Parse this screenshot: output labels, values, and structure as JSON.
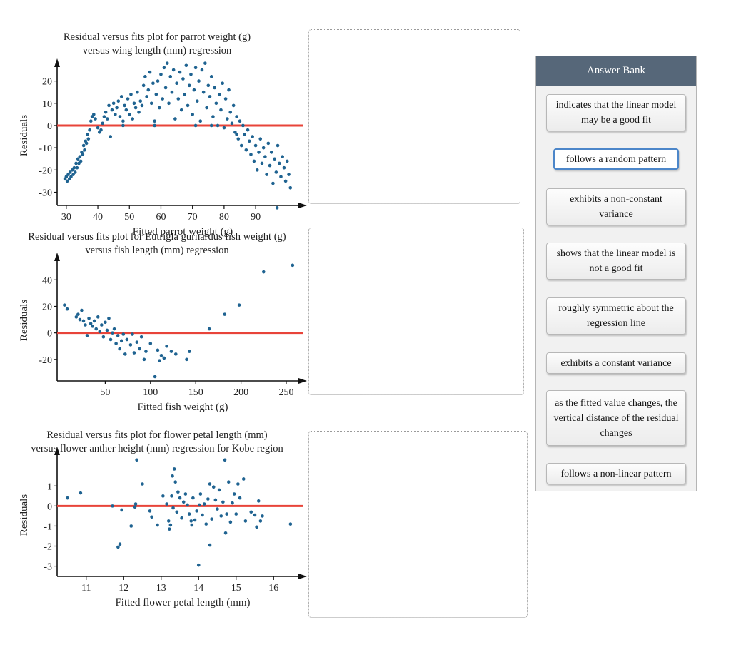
{
  "colors": {
    "point": "#1f6391",
    "regression_line": "#e8443a",
    "bank_header": "#566779"
  },
  "answer_bank": {
    "title": "Answer Bank",
    "chips": [
      "indicates that the linear model may be a good fit",
      "follows a random pattern",
      "exhibits a non-constant variance",
      "shows that the linear model is not a good fit",
      "roughly symmetric about the regression line",
      "exhibits a constant variance",
      "as the fitted value changes, the vertical distance of the residual changes",
      "follows a non-linear pattern"
    ]
  },
  "chart_data": [
    {
      "type": "scatter",
      "title_lines": [
        "Residual versus fits plot for parrot weight (g)",
        "versus wing length (mm) regression"
      ],
      "xlabel": "Fitted parrot weight (g)",
      "ylabel": "Residuals",
      "xlim": [
        28,
        104
      ],
      "ylim": [
        -34,
        25
      ],
      "xticks": [
        30,
        40,
        50,
        60,
        70,
        80,
        90
      ],
      "yticks": [
        20,
        10,
        0,
        -10,
        -20,
        -30
      ],
      "reference_line_y": 0,
      "points": [
        [
          29.6,
          -24
        ],
        [
          30.0,
          -23
        ],
        [
          30.3,
          -25
        ],
        [
          30.6,
          -22
        ],
        [
          31.0,
          -24
        ],
        [
          31.2,
          -21
        ],
        [
          31.5,
          -23
        ],
        [
          31.9,
          -20
        ],
        [
          32.2,
          -22
        ],
        [
          32.5,
          -19
        ],
        [
          32.8,
          -21
        ],
        [
          33.1,
          -17
        ],
        [
          33.4,
          -19
        ],
        [
          33.7,
          -15
        ],
        [
          34.0,
          -17
        ],
        [
          34.3,
          -14
        ],
        [
          34.6,
          -16
        ],
        [
          34.9,
          -12
        ],
        [
          35.2,
          -13
        ],
        [
          35.5,
          -9
        ],
        [
          35.8,
          -11
        ],
        [
          36.1,
          -7
        ],
        [
          36.4,
          -8
        ],
        [
          36.7,
          -4
        ],
        [
          37.0,
          -6
        ],
        [
          37.4,
          -2
        ],
        [
          37.8,
          2
        ],
        [
          38.2,
          4
        ],
        [
          38.7,
          5
        ],
        [
          39.2,
          3
        ],
        [
          40.0,
          -1
        ],
        [
          40.5,
          -3
        ],
        [
          41.0,
          -2
        ],
        [
          41.5,
          1
        ],
        [
          42.0,
          4
        ],
        [
          42.5,
          6
        ],
        [
          43.0,
          3
        ],
        [
          43.5,
          9
        ],
        [
          44.0,
          -5
        ],
        [
          44.5,
          7
        ],
        [
          45.0,
          10
        ],
        [
          45.5,
          5
        ],
        [
          46.0,
          8
        ],
        [
          46.5,
          11
        ],
        [
          47.0,
          4
        ],
        [
          47.5,
          13
        ],
        [
          48.0,
          2
        ],
        [
          48.5,
          9
        ],
        [
          49.0,
          7
        ],
        [
          49.5,
          12
        ],
        [
          50.0,
          5
        ],
        [
          50.5,
          14
        ],
        [
          51.0,
          3
        ],
        [
          51.5,
          10
        ],
        [
          52.0,
          8
        ],
        [
          52.5,
          15
        ],
        [
          53.0,
          6
        ],
        [
          53.5,
          11
        ],
        [
          54.0,
          9
        ],
        [
          54.5,
          18
        ],
        [
          55.0,
          22
        ],
        [
          55.5,
          13
        ],
        [
          56.0,
          16
        ],
        [
          56.5,
          24
        ],
        [
          57.0,
          10
        ],
        [
          57.5,
          19
        ],
        [
          58.0,
          2
        ],
        [
          58.5,
          14
        ],
        [
          59.0,
          20
        ],
        [
          59.5,
          8
        ],
        [
          60.0,
          23
        ],
        [
          60.5,
          12
        ],
        [
          61.0,
          26
        ],
        [
          61.5,
          17
        ],
        [
          62.0,
          28
        ],
        [
          62.5,
          10
        ],
        [
          63.0,
          22
        ],
        [
          63.5,
          15
        ],
        [
          64.0,
          25
        ],
        [
          64.5,
          3
        ],
        [
          65.0,
          19
        ],
        [
          65.5,
          12
        ],
        [
          66.0,
          24
        ],
        [
          66.5,
          7
        ],
        [
          67.0,
          21
        ],
        [
          67.5,
          14
        ],
        [
          68.0,
          27
        ],
        [
          68.5,
          9
        ],
        [
          69.0,
          18
        ],
        [
          69.5,
          23
        ],
        [
          70.0,
          5
        ],
        [
          70.5,
          16
        ],
        [
          71.0,
          26
        ],
        [
          71.5,
          11
        ],
        [
          72.0,
          20
        ],
        [
          72.5,
          2
        ],
        [
          73.0,
          25
        ],
        [
          73.5,
          15
        ],
        [
          74.0,
          28
        ],
        [
          74.5,
          8
        ],
        [
          75.0,
          18
        ],
        [
          75.5,
          13
        ],
        [
          76.0,
          22
        ],
        [
          76.5,
          4
        ],
        [
          77.0,
          17
        ],
        [
          77.5,
          10
        ],
        [
          78.0,
          0
        ],
        [
          78.5,
          14
        ],
        [
          79.0,
          7
        ],
        [
          79.5,
          19
        ],
        [
          80.0,
          -1
        ],
        [
          80.5,
          12
        ],
        [
          81.0,
          3
        ],
        [
          81.5,
          16
        ],
        [
          82.0,
          6
        ],
        [
          82.5,
          1
        ],
        [
          83.0,
          9
        ],
        [
          83.5,
          -3
        ],
        [
          84.0,
          4
        ],
        [
          84.5,
          -6
        ],
        [
          85.0,
          2
        ],
        [
          85.5,
          -9
        ],
        [
          86.0,
          0
        ],
        [
          86.5,
          -4
        ],
        [
          87.0,
          -11
        ],
        [
          87.5,
          -2
        ],
        [
          88.0,
          -7
        ],
        [
          88.5,
          -13
        ],
        [
          89.0,
          -5
        ],
        [
          89.5,
          -16
        ],
        [
          90.0,
          -9
        ],
        [
          90.5,
          -20
        ],
        [
          91.0,
          -12
        ],
        [
          91.5,
          -6
        ],
        [
          92.0,
          -17
        ],
        [
          92.5,
          -10
        ],
        [
          93.0,
          -14
        ],
        [
          93.5,
          -22
        ],
        [
          94.0,
          -8
        ],
        [
          94.5,
          -18
        ],
        [
          95.0,
          -12
        ],
        [
          95.5,
          -26
        ],
        [
          96.0,
          -15
        ],
        [
          96.5,
          -21
        ],
        [
          97.0,
          -9
        ],
        [
          97.5,
          -17
        ],
        [
          98.0,
          -23
        ],
        [
          98.5,
          -14
        ],
        [
          99.0,
          -19
        ],
        [
          99.5,
          -25
        ],
        [
          100.0,
          -16
        ],
        [
          100.5,
          -22
        ],
        [
          101.0,
          -28
        ],
        [
          96.8,
          -37
        ],
        [
          84.0,
          -4
        ],
        [
          76.0,
          0
        ],
        [
          71.0,
          0
        ],
        [
          58.0,
          0
        ],
        [
          48.0,
          0
        ]
      ]
    },
    {
      "type": "scatter",
      "title_lines": [
        "Residual versus fits plot for Eutrigla gurnardus fish weight (g)",
        "versus fish length (mm) regression"
      ],
      "xlabel": "Fitted fish weight (g)",
      "ylabel": "Residuals",
      "xlim": [
        0,
        265
      ],
      "ylim": [
        -33,
        52
      ],
      "xticks": [
        50,
        100,
        150,
        200,
        250
      ],
      "yticks": [
        40,
        20,
        0,
        -20
      ],
      "reference_line_y": 0,
      "points": [
        [
          5,
          21
        ],
        [
          8,
          18
        ],
        [
          18,
          12
        ],
        [
          20,
          14
        ],
        [
          22,
          10
        ],
        [
          24,
          17
        ],
        [
          26,
          9
        ],
        [
          28,
          6
        ],
        [
          30,
          -2
        ],
        [
          32,
          11
        ],
        [
          34,
          7
        ],
        [
          36,
          5
        ],
        [
          38,
          9
        ],
        [
          40,
          3
        ],
        [
          42,
          12
        ],
        [
          44,
          1
        ],
        [
          46,
          6
        ],
        [
          48,
          -3
        ],
        [
          50,
          8
        ],
        [
          52,
          2
        ],
        [
          54,
          11
        ],
        [
          56,
          -5
        ],
        [
          58,
          0
        ],
        [
          60,
          3
        ],
        [
          62,
          -8
        ],
        [
          64,
          -2
        ],
        [
          66,
          -12
        ],
        [
          68,
          -6
        ],
        [
          70,
          -1
        ],
        [
          72,
          -16
        ],
        [
          74,
          -5
        ],
        [
          78,
          -9
        ],
        [
          80,
          -1
        ],
        [
          82,
          -15
        ],
        [
          85,
          -7
        ],
        [
          88,
          -12
        ],
        [
          90,
          -3
        ],
        [
          93,
          -20
        ],
        [
          95,
          -14
        ],
        [
          100,
          -8
        ],
        [
          105,
          -33
        ],
        [
          108,
          -13
        ],
        [
          110,
          -21
        ],
        [
          112,
          -17
        ],
        [
          115,
          -19
        ],
        [
          118,
          -10
        ],
        [
          123,
          -14
        ],
        [
          128,
          -16
        ],
        [
          140,
          -20
        ],
        [
          143,
          -14
        ],
        [
          165,
          3
        ],
        [
          182,
          14
        ],
        [
          198,
          21
        ],
        [
          225,
          46
        ],
        [
          257,
          51
        ]
      ]
    },
    {
      "type": "scatter",
      "title_lines": [
        "Residual versus fits plot for flower petal length (mm)",
        "versus flower anther height (mm) regression for Kobe region"
      ],
      "xlabel": "Fitted flower petal length (mm)",
      "ylabel": "Residuals",
      "xlim": [
        10.3,
        16.7
      ],
      "ylim": [
        -3.3,
        2.4
      ],
      "xticks": [
        11,
        12,
        13,
        14,
        15,
        16
      ],
      "yticks": [
        1,
        0,
        -1,
        -2,
        -3
      ],
      "reference_line_y": 0,
      "points": [
        [
          10.5,
          0.4
        ],
        [
          10.85,
          0.65
        ],
        [
          11.7,
          0.0
        ],
        [
          11.85,
          -2.05
        ],
        [
          11.9,
          -1.9
        ],
        [
          11.95,
          -0.2
        ],
        [
          12.2,
          -1.0
        ],
        [
          12.3,
          -0.05
        ],
        [
          12.32,
          0.1
        ],
        [
          12.35,
          2.3
        ],
        [
          12.5,
          1.1
        ],
        [
          12.7,
          -0.25
        ],
        [
          12.75,
          -0.55
        ],
        [
          12.9,
          -0.95
        ],
        [
          13.05,
          0.5
        ],
        [
          13.15,
          0.1
        ],
        [
          13.2,
          -0.75
        ],
        [
          13.22,
          -1.15
        ],
        [
          13.25,
          -0.95
        ],
        [
          13.28,
          0.5
        ],
        [
          13.3,
          1.5
        ],
        [
          13.32,
          -0.1
        ],
        [
          13.35,
          1.85
        ],
        [
          13.38,
          1.2
        ],
        [
          13.42,
          -0.3
        ],
        [
          13.45,
          0.7
        ],
        [
          13.5,
          0.4
        ],
        [
          13.55,
          -0.6
        ],
        [
          13.6,
          0.2
        ],
        [
          13.65,
          0.6
        ],
        [
          13.7,
          0.05
        ],
        [
          13.75,
          -0.4
        ],
        [
          13.8,
          -0.75
        ],
        [
          13.82,
          -0.95
        ],
        [
          13.85,
          0.4
        ],
        [
          13.9,
          -0.7
        ],
        [
          13.95,
          -0.25
        ],
        [
          14.0,
          -2.95
        ],
        [
          14.02,
          0.05
        ],
        [
          14.05,
          0.6
        ],
        [
          14.1,
          -0.45
        ],
        [
          14.15,
          0.1
        ],
        [
          14.2,
          -0.9
        ],
        [
          14.25,
          0.35
        ],
        [
          14.3,
          1.1
        ],
        [
          14.3,
          -1.95
        ],
        [
          14.35,
          -0.65
        ],
        [
          14.4,
          0.95
        ],
        [
          14.45,
          0.3
        ],
        [
          14.5,
          -0.15
        ],
        [
          14.55,
          0.8
        ],
        [
          14.6,
          -0.5
        ],
        [
          14.65,
          0.2
        ],
        [
          14.7,
          2.3
        ],
        [
          14.72,
          -1.35
        ],
        [
          14.75,
          -0.4
        ],
        [
          14.8,
          1.2
        ],
        [
          14.85,
          -0.8
        ],
        [
          14.9,
          0.15
        ],
        [
          14.95,
          0.6
        ],
        [
          15.0,
          -0.4
        ],
        [
          15.05,
          1.1
        ],
        [
          15.1,
          0.4
        ],
        [
          15.2,
          1.35
        ],
        [
          15.25,
          -0.75
        ],
        [
          15.4,
          -0.3
        ],
        [
          15.5,
          -0.45
        ],
        [
          15.55,
          -1.05
        ],
        [
          15.6,
          0.25
        ],
        [
          15.65,
          -0.75
        ],
        [
          15.7,
          -0.5
        ],
        [
          16.45,
          -0.9
        ]
      ]
    }
  ]
}
